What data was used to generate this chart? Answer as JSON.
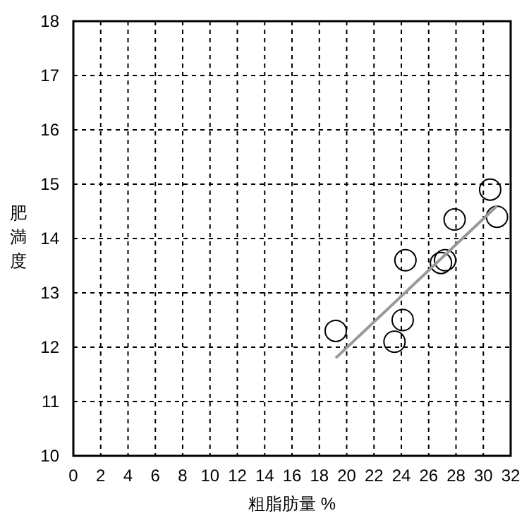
{
  "chart_data": {
    "type": "scatter",
    "xlabel": "粗脂肪量 %",
    "ylabel": "肥満度",
    "xlim": [
      0,
      32
    ],
    "xticks": [
      0,
      2,
      4,
      6,
      8,
      10,
      12,
      14,
      16,
      18,
      20,
      22,
      24,
      26,
      28,
      30,
      32
    ],
    "ylim": [
      10,
      18
    ],
    "yticks": [
      10,
      11,
      12,
      13,
      14,
      15,
      16,
      17,
      18
    ],
    "grid": true,
    "series": [
      {
        "marker": "circle",
        "color": "#000000",
        "x": [
          19.2,
          23.5,
          24.1,
          24.3,
          26.9,
          27.2,
          27.9,
          30.5,
          31.0
        ],
        "values": [
          12.3,
          12.1,
          12.5,
          13.6,
          13.55,
          13.6,
          14.35,
          14.9,
          14.4
        ]
      },
      {
        "type": "line",
        "color": "#999999",
        "x": [
          19.2,
          31.0
        ],
        "values": [
          11.8,
          14.6
        ]
      }
    ]
  }
}
